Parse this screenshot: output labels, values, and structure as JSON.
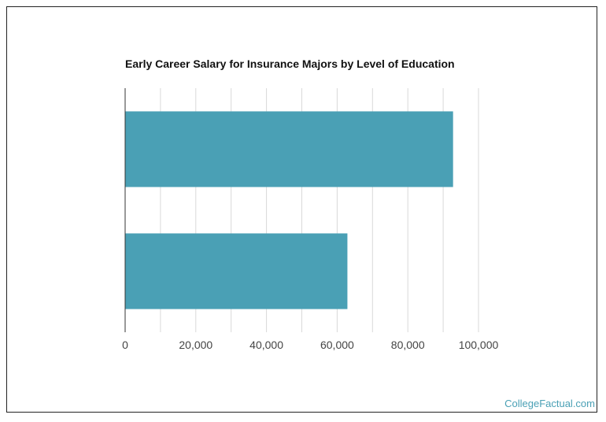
{
  "chart_data": {
    "type": "bar",
    "orientation": "horizontal",
    "title": "Early Career Salary for Insurance Majors by Level of Education",
    "categories": [
      "",
      ""
    ],
    "values": [
      92800,
      62900
    ],
    "xlim": [
      0,
      100000
    ],
    "xticks": [
      0,
      20000,
      40000,
      60000,
      80000,
      100000
    ],
    "xtick_labels": [
      "0",
      "20,000",
      "40,000",
      "60,000",
      "80,000",
      "100,000"
    ],
    "grid": true,
    "legend": "none",
    "bar_color": "#4aa0b5"
  },
  "branding": {
    "text": "CollegeFactual.com",
    "color": "#4aa0b5"
  }
}
